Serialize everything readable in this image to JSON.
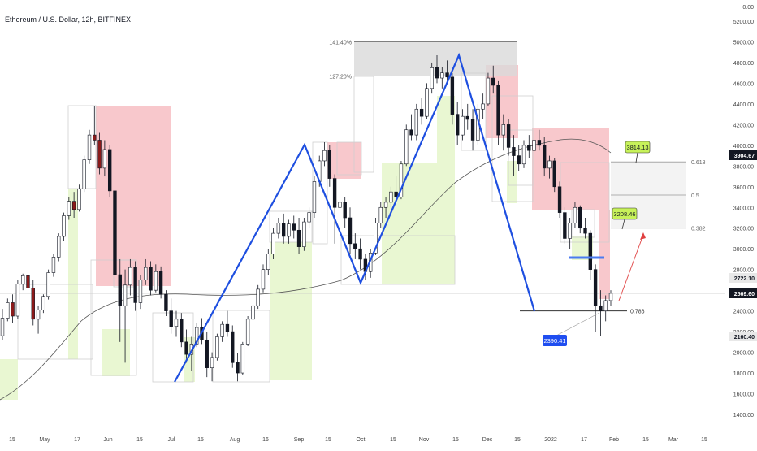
{
  "header": {
    "title": "Ethereum / U.S. Dollar, 12h, BITFINEX"
  },
  "colors": {
    "background": "#ffffff",
    "candle_up": "#ffffff",
    "candle_down": "#131722",
    "candle_red": "#8b1a1a",
    "zigzag": "#1e4fe0",
    "supply_zone": "#f8c8cc",
    "demand_zone": "#e9f7d2",
    "neutral_box": "#d9d9d9",
    "label_green": "#c7f25a",
    "label_blue": "#1f4ef0",
    "arrow_red": "#e04040",
    "ma_line": "#555555"
  },
  "chart_data": {
    "type": "candlestick",
    "symbol": "Ethereum / U.S. Dollar, 12h, BITFINEX",
    "y_axis": {
      "ticks": [
        "0.00",
        "5200.00",
        "5000.00",
        "4800.00",
        "4600.00",
        "4400.00",
        "4200.00",
        "4000.00",
        "3800.00",
        "3600.00",
        "3400.00",
        "3200.00",
        "3000.00",
        "2800.00",
        "2600.00",
        "2400.00",
        "2200.00",
        "2000.00",
        "1800.00",
        "1600.00",
        "1400.00"
      ],
      "range": [
        1400,
        5200
      ]
    },
    "x_axis": {
      "ticks": [
        "15",
        "May",
        "17",
        "Jun",
        "15",
        "Jul",
        "15",
        "Aug",
        "16",
        "Sep",
        "15",
        "Oct",
        "15",
        "Nov",
        "15",
        "Dec",
        "15",
        "2022",
        "17",
        "Feb",
        "15",
        "Mar",
        "15"
      ]
    },
    "price_labels": [
      {
        "text": "3904.67",
        "kind": "dark"
      },
      {
        "text": "2722.10",
        "kind": "light"
      },
      {
        "text": "2569.60",
        "kind": "dark"
      },
      {
        "text": "2160.40",
        "kind": "light"
      }
    ],
    "fib_top": [
      {
        "label": "141.40%",
        "price": 5000
      },
      {
        "label": "127.20%",
        "price": 4670
      }
    ],
    "fib_right": [
      {
        "label": "0.618",
        "price": 3840
      },
      {
        "label": "0.5",
        "price": 3520
      },
      {
        "label": "0.382",
        "price": 3200
      }
    ],
    "level_786": {
      "label": "0.786",
      "price": 2400
    },
    "callouts": [
      {
        "text": "3814.13",
        "kind": "green",
        "price": 3814.13
      },
      {
        "text": "3208.46",
        "kind": "green",
        "price": 3208.46
      },
      {
        "text": "2390.41",
        "kind": "blue",
        "price": 2390.41
      }
    ],
    "zigzag_points": [
      {
        "date": "Jul 1",
        "price": 1700
      },
      {
        "date": "Sep 6",
        "price": 4020
      },
      {
        "date": "Sep 29",
        "price": 2700
      },
      {
        "date": "Nov 10",
        "price": 4870
      },
      {
        "date": "Jan 6",
        "price": 2400
      }
    ],
    "candles": [
      {
        "o": 2160,
        "h": 2420,
        "l": 2120,
        "c": 2330
      },
      {
        "o": 2330,
        "h": 2520,
        "l": 2300,
        "c": 2480
      },
      {
        "o": 2480,
        "h": 2560,
        "l": 2280,
        "c": 2350
      },
      {
        "o": 2350,
        "h": 2700,
        "l": 2320,
        "c": 2660
      },
      {
        "o": 2660,
        "h": 2760,
        "l": 2600,
        "c": 2740
      },
      {
        "o": 2740,
        "h": 2780,
        "l": 2580,
        "c": 2620
      },
      {
        "o": 2620,
        "h": 2700,
        "l": 2260,
        "c": 2320
      },
      {
        "o": 2320,
        "h": 2450,
        "l": 2180,
        "c": 2410
      },
      {
        "o": 2410,
        "h": 2560,
        "l": 2380,
        "c": 2540
      },
      {
        "o": 2540,
        "h": 2800,
        "l": 2510,
        "c": 2770
      },
      {
        "o": 2770,
        "h": 2950,
        "l": 2730,
        "c": 2920
      },
      {
        "o": 2920,
        "h": 3150,
        "l": 2880,
        "c": 3120
      },
      {
        "o": 3120,
        "h": 3350,
        "l": 3080,
        "c": 3320
      },
      {
        "o": 3320,
        "h": 3500,
        "l": 3280,
        "c": 3460
      },
      {
        "o": 3460,
        "h": 3550,
        "l": 3300,
        "c": 3380
      },
      {
        "o": 3380,
        "h": 3620,
        "l": 3360,
        "c": 3580
      },
      {
        "o": 3580,
        "h": 3900,
        "l": 3550,
        "c": 3860
      },
      {
        "o": 3860,
        "h": 4150,
        "l": 3820,
        "c": 4100
      },
      {
        "o": 4100,
        "h": 4380,
        "l": 4000,
        "c": 4050
      },
      {
        "o": 4050,
        "h": 4120,
        "l": 3720,
        "c": 3780
      },
      {
        "o": 3780,
        "h": 4050,
        "l": 3700,
        "c": 3960
      },
      {
        "o": 3960,
        "h": 4000,
        "l": 3500,
        "c": 3560
      },
      {
        "o": 3560,
        "h": 3640,
        "l": 2600,
        "c": 2750
      },
      {
        "o": 2750,
        "h": 2900,
        "l": 2100,
        "c": 2450
      },
      {
        "o": 2450,
        "h": 2800,
        "l": 1900,
        "c": 2650
      },
      {
        "o": 2650,
        "h": 2900,
        "l": 2550,
        "c": 2820
      },
      {
        "o": 2820,
        "h": 2880,
        "l": 2400,
        "c": 2480
      },
      {
        "o": 2480,
        "h": 2750,
        "l": 2420,
        "c": 2700
      },
      {
        "o": 2700,
        "h": 2900,
        "l": 2650,
        "c": 2820
      },
      {
        "o": 2820,
        "h": 2880,
        "l": 2550,
        "c": 2600
      },
      {
        "o": 2600,
        "h": 2850,
        "l": 2580,
        "c": 2780
      },
      {
        "o": 2780,
        "h": 2830,
        "l": 2520,
        "c": 2560
      },
      {
        "o": 2560,
        "h": 2600,
        "l": 2350,
        "c": 2400
      },
      {
        "o": 2400,
        "h": 2520,
        "l": 2180,
        "c": 2250
      },
      {
        "o": 2250,
        "h": 2400,
        "l": 2150,
        "c": 2320
      },
      {
        "o": 2320,
        "h": 2380,
        "l": 2050,
        "c": 2100
      },
      {
        "o": 2100,
        "h": 2220,
        "l": 1900,
        "c": 1980
      },
      {
        "o": 1980,
        "h": 2150,
        "l": 1820,
        "c": 2080
      },
      {
        "o": 2080,
        "h": 2280,
        "l": 2050,
        "c": 2240
      },
      {
        "o": 2240,
        "h": 2330,
        "l": 2080,
        "c": 2120
      },
      {
        "o": 2120,
        "h": 2200,
        "l": 1760,
        "c": 1850
      },
      {
        "o": 1850,
        "h": 2000,
        "l": 1720,
        "c": 1950
      },
      {
        "o": 1950,
        "h": 2180,
        "l": 1920,
        "c": 2150
      },
      {
        "o": 2150,
        "h": 2300,
        "l": 2100,
        "c": 2270
      },
      {
        "o": 2270,
        "h": 2400,
        "l": 2150,
        "c": 2200
      },
      {
        "o": 2200,
        "h": 2260,
        "l": 1850,
        "c": 1900
      },
      {
        "o": 1900,
        "h": 1990,
        "l": 1720,
        "c": 1800
      },
      {
        "o": 1800,
        "h": 2100,
        "l": 1780,
        "c": 2080
      },
      {
        "o": 2080,
        "h": 2350,
        "l": 2060,
        "c": 2320
      },
      {
        "o": 2320,
        "h": 2480,
        "l": 2280,
        "c": 2450
      },
      {
        "o": 2450,
        "h": 2650,
        "l": 2420,
        "c": 2610
      },
      {
        "o": 2610,
        "h": 2850,
        "l": 2580,
        "c": 2800
      },
      {
        "o": 2800,
        "h": 3000,
        "l": 2750,
        "c": 2950
      },
      {
        "o": 2950,
        "h": 3200,
        "l": 2900,
        "c": 3150
      },
      {
        "o": 3150,
        "h": 3300,
        "l": 3100,
        "c": 3250
      },
      {
        "o": 3250,
        "h": 3340,
        "l": 3050,
        "c": 3120
      },
      {
        "o": 3120,
        "h": 3280,
        "l": 3050,
        "c": 3240
      },
      {
        "o": 3240,
        "h": 3320,
        "l": 3100,
        "c": 3180
      },
      {
        "o": 3180,
        "h": 3300,
        "l": 2950,
        "c": 3020
      },
      {
        "o": 3020,
        "h": 3300,
        "l": 2980,
        "c": 3260
      },
      {
        "o": 3260,
        "h": 3400,
        "l": 3200,
        "c": 3350
      },
      {
        "o": 3350,
        "h": 3700,
        "l": 3300,
        "c": 3650
      },
      {
        "o": 3650,
        "h": 3900,
        "l": 3600,
        "c": 3850
      },
      {
        "o": 3850,
        "h": 4030,
        "l": 3800,
        "c": 3950
      },
      {
        "o": 3950,
        "h": 4000,
        "l": 3600,
        "c": 3680
      },
      {
        "o": 3680,
        "h": 3720,
        "l": 3050,
        "c": 3400
      },
      {
        "o": 3400,
        "h": 3500,
        "l": 3300,
        "c": 3450
      },
      {
        "o": 3450,
        "h": 3500,
        "l": 3200,
        "c": 3300
      },
      {
        "o": 3300,
        "h": 3400,
        "l": 2950,
        "c": 3050
      },
      {
        "o": 3050,
        "h": 3150,
        "l": 2900,
        "c": 3000
      },
      {
        "o": 3000,
        "h": 3100,
        "l": 2800,
        "c": 2900
      },
      {
        "o": 2900,
        "h": 2950,
        "l": 2700,
        "c": 2780
      },
      {
        "o": 2780,
        "h": 3000,
        "l": 2720,
        "c": 2960
      },
      {
        "o": 2960,
        "h": 3300,
        "l": 2940,
        "c": 3250
      },
      {
        "o": 3250,
        "h": 3450,
        "l": 3200,
        "c": 3400
      },
      {
        "o": 3400,
        "h": 3500,
        "l": 3300,
        "c": 3450
      },
      {
        "o": 3450,
        "h": 3600,
        "l": 3400,
        "c": 3550
      },
      {
        "o": 3550,
        "h": 3700,
        "l": 3450,
        "c": 3500
      },
      {
        "o": 3500,
        "h": 3850,
        "l": 3480,
        "c": 3820
      },
      {
        "o": 3820,
        "h": 4200,
        "l": 3800,
        "c": 4150
      },
      {
        "o": 4150,
        "h": 4300,
        "l": 4050,
        "c": 4100
      },
      {
        "o": 4100,
        "h": 4400,
        "l": 4050,
        "c": 4350
      },
      {
        "o": 4350,
        "h": 4460,
        "l": 4200,
        "c": 4280
      },
      {
        "o": 4280,
        "h": 4600,
        "l": 4250,
        "c": 4550
      },
      {
        "o": 4550,
        "h": 4800,
        "l": 4500,
        "c": 4750
      },
      {
        "o": 4750,
        "h": 4870,
        "l": 4600,
        "c": 4650
      },
      {
        "o": 4650,
        "h": 4760,
        "l": 4550,
        "c": 4700
      },
      {
        "o": 4700,
        "h": 4820,
        "l": 4600,
        "c": 4660
      },
      {
        "o": 4660,
        "h": 4700,
        "l": 4200,
        "c": 4300
      },
      {
        "o": 4300,
        "h": 4420,
        "l": 4000,
        "c": 4100
      },
      {
        "o": 4100,
        "h": 4350,
        "l": 4050,
        "c": 4280
      },
      {
        "o": 4280,
        "h": 4400,
        "l": 4150,
        "c": 4250
      },
      {
        "o": 4250,
        "h": 4350,
        "l": 3950,
        "c": 4050
      },
      {
        "o": 4050,
        "h": 4400,
        "l": 4000,
        "c": 4350
      },
      {
        "o": 4350,
        "h": 4500,
        "l": 4250,
        "c": 4400
      },
      {
        "o": 4400,
        "h": 4700,
        "l": 4380,
        "c": 4650
      },
      {
        "o": 4650,
        "h": 4770,
        "l": 4500,
        "c": 4580
      },
      {
        "o": 4580,
        "h": 4620,
        "l": 4000,
        "c": 4100
      },
      {
        "o": 4100,
        "h": 4300,
        "l": 3950,
        "c": 4200
      },
      {
        "o": 4200,
        "h": 4250,
        "l": 3900,
        "c": 3980
      },
      {
        "o": 3980,
        "h": 4100,
        "l": 3700,
        "c": 3900
      },
      {
        "o": 3900,
        "h": 4000,
        "l": 3750,
        "c": 3820
      },
      {
        "o": 3820,
        "h": 4050,
        "l": 3780,
        "c": 4000
      },
      {
        "o": 4000,
        "h": 4100,
        "l": 3880,
        "c": 3950
      },
      {
        "o": 3950,
        "h": 4100,
        "l": 3900,
        "c": 4050
      },
      {
        "o": 4050,
        "h": 4150,
        "l": 3950,
        "c": 4000
      },
      {
        "o": 4000,
        "h": 4080,
        "l": 3700,
        "c": 3780
      },
      {
        "o": 3780,
        "h": 3900,
        "l": 3680,
        "c": 3850
      },
      {
        "o": 3850,
        "h": 3880,
        "l": 3550,
        "c": 3600
      },
      {
        "o": 3600,
        "h": 3650,
        "l": 3300,
        "c": 3350
      },
      {
        "o": 3350,
        "h": 3400,
        "l": 3050,
        "c": 3100
      },
      {
        "o": 3100,
        "h": 3300,
        "l": 3000,
        "c": 3250
      },
      {
        "o": 3250,
        "h": 3450,
        "l": 3200,
        "c": 3400
      },
      {
        "o": 3400,
        "h": 3420,
        "l": 3150,
        "c": 3200
      },
      {
        "o": 3200,
        "h": 3300,
        "l": 3100,
        "c": 3150
      },
      {
        "o": 3150,
        "h": 3180,
        "l": 2700,
        "c": 2800
      },
      {
        "o": 2800,
        "h": 2850,
        "l": 2200,
        "c": 2450
      },
      {
        "o": 2450,
        "h": 2600,
        "l": 2160,
        "c": 2400
      },
      {
        "o": 2400,
        "h": 2550,
        "l": 2300,
        "c": 2500
      },
      {
        "o": 2500,
        "h": 2600,
        "l": 2450,
        "c": 2570
      }
    ]
  }
}
